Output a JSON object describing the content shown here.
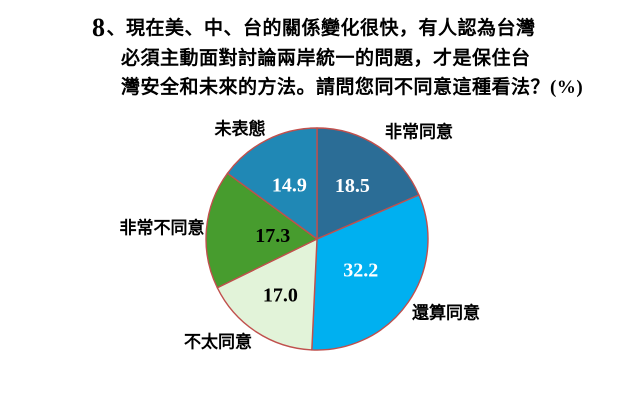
{
  "title": {
    "number": "8",
    "line1": "、現在美、中、台的關係變化很快，有人認為台灣",
    "line2": "必須主動面對討論兩岸統一的問題，才是保住台",
    "line3": "灣安全和未來的方法。請問您同不同意這種看法？(%)"
  },
  "chart_data": {
    "type": "pie",
    "unit": "%",
    "start_angle": "top",
    "direction": "clockwise",
    "legend_position": "outside-labels",
    "outline_color": "#C0504D",
    "center": [
      317,
      239
    ],
    "radius": 111,
    "slices": [
      {
        "id": "strongly-agree",
        "label": "非常同意",
        "value": 18.5,
        "display": "18.5",
        "color": "#2B6D96",
        "value_color": "#FFFFFF",
        "label_r": 0.58
      },
      {
        "id": "somewhat-agree",
        "label": "還算同意",
        "value": 32.2,
        "display": "32.2",
        "color": "#00B0F0",
        "value_color": "#FFFFFF",
        "label_r": 0.48
      },
      {
        "id": "somewhat-disagree",
        "label": "不太同意",
        "value": 17.0,
        "display": "17.0",
        "color": "#E2F3D9",
        "value_color": "#000000",
        "label_r": 0.6
      },
      {
        "id": "strongly-disagree",
        "label": "非常不同意",
        "value": 17.3,
        "display": "17.3",
        "color": "#479C2E",
        "value_color": "#000000",
        "label_r": 0.4
      },
      {
        "id": "no-opinion",
        "label": "未表態",
        "value": 14.9,
        "display": "14.9",
        "color": "#2088B5",
        "value_color": "#FFFFFF",
        "label_r": 0.55
      }
    ]
  }
}
